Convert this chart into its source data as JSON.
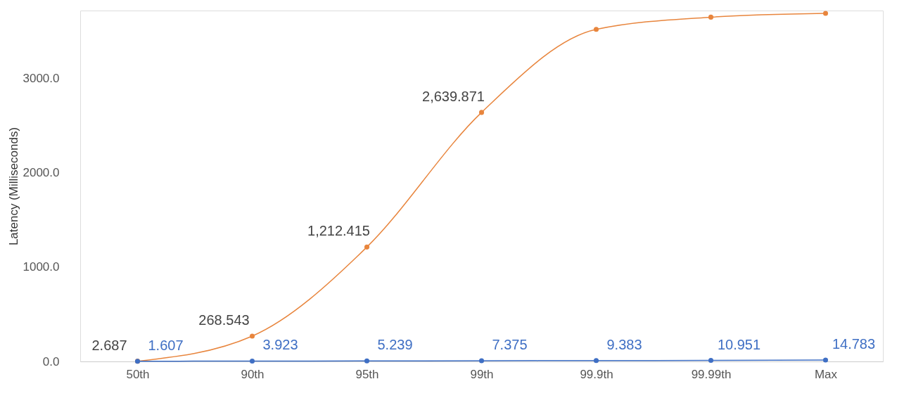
{
  "chart_data": {
    "type": "line",
    "ylabel": "Latency (Milliseconds)",
    "categories": [
      "50th",
      "90th",
      "95th",
      "99th",
      "99.9th",
      "99.99th",
      "Max"
    ],
    "ylim": [
      0,
      3720
    ],
    "yticks": [
      {
        "value": 0,
        "label": "0.0"
      },
      {
        "value": 1000,
        "label": "1000.0"
      },
      {
        "value": 2000,
        "label": "2000.0"
      },
      {
        "value": 3000,
        "label": "3000.0"
      }
    ],
    "grid": false,
    "marker": "circle",
    "line_style": "solid",
    "series": [
      {
        "color": "#e8853d",
        "values": [
          2.687,
          268.543,
          1212.415,
          2639.871,
          3520,
          3650,
          3690
        ],
        "value_labels": [
          "2.687",
          "268.543",
          "1,212.415",
          "2,639.871",
          null,
          null,
          null
        ]
      },
      {
        "color": "#3f6fc4",
        "values": [
          1.607,
          3.923,
          5.239,
          7.375,
          9.383,
          10.951,
          14.783
        ],
        "value_labels": [
          "1.607",
          "3.923",
          "5.239",
          "7.375",
          "9.383",
          "10.951",
          "14.783"
        ]
      }
    ]
  }
}
